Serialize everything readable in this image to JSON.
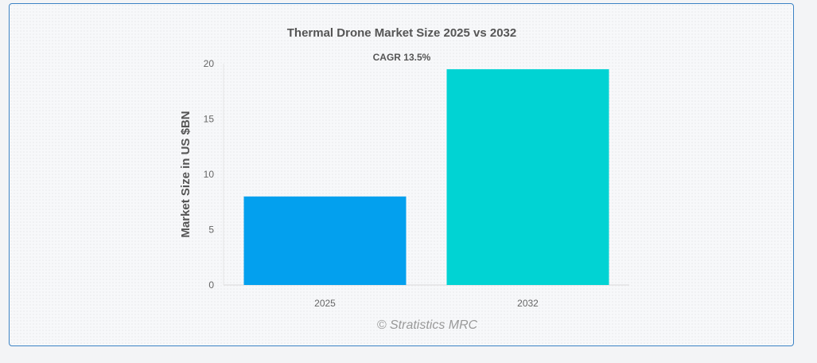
{
  "chart_data": {
    "type": "bar",
    "title": "Thermal Drone Market Size 2025 vs 2032",
    "subtitle": "CAGR 13.5%",
    "ylabel": "Market Size in US $BN",
    "xlabel": "",
    "categories": [
      "2025",
      "2032"
    ],
    "values": [
      8.0,
      19.5
    ],
    "colors": [
      "#03a0ee",
      "#01d3d3"
    ],
    "ylim": [
      0,
      20
    ],
    "yticks": [
      0,
      5,
      10,
      15,
      20
    ],
    "grid": false,
    "credit": "© Stratistics MRC"
  }
}
